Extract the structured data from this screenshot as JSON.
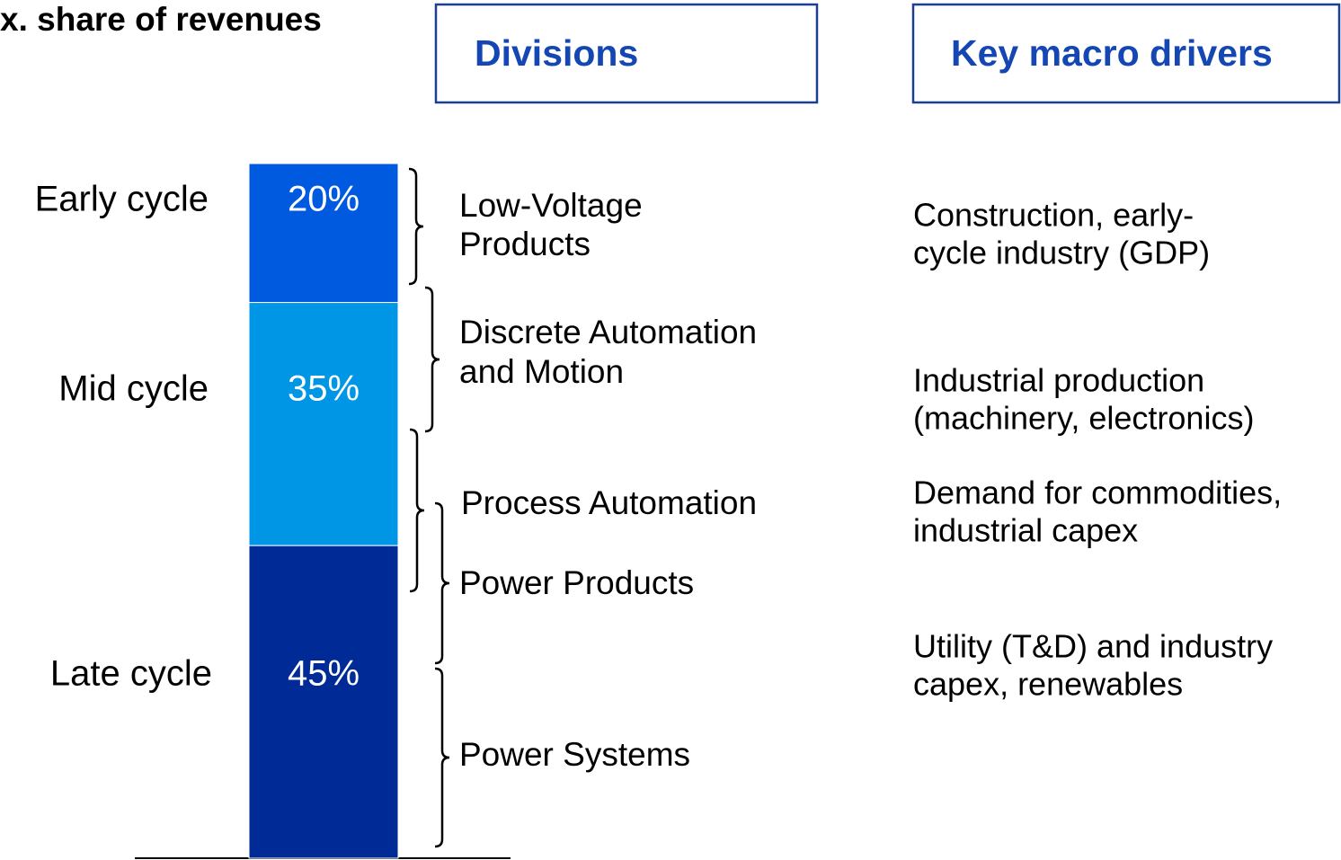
{
  "chart_data": {
    "type": "stacked_bar",
    "title": "x. share of revenues",
    "series": [
      {
        "name": "Early cycle",
        "color": "#005ae0",
        "values": [
          20
        ],
        "value_labels": [
          "20%"
        ]
      },
      {
        "name": "Mid cycle",
        "color": "#0096e6",
        "values": [
          35
        ],
        "value_labels": [
          "35%"
        ]
      },
      {
        "name": "Late cycle",
        "color": "#002a96",
        "values": [
          45
        ],
        "value_labels": [
          "45%"
        ]
      }
    ],
    "divisions": {
      "title": "Divisions",
      "items": [
        [
          "Low-Voltage",
          "Products"
        ],
        [
          "Discrete Automation",
          "and Motion"
        ],
        [
          "Process Automation"
        ],
        [
          "Power Products"
        ],
        [
          "Power Systems"
        ]
      ]
    },
    "drivers": {
      "title": "Key macro drivers",
      "items": [
        [
          "Construction, early-",
          "cycle industry (GDP)"
        ],
        [
          "Industrial production",
          "(machinery, electronics)"
        ],
        [
          "Demand for commodities,",
          "industrial capex"
        ],
        [
          "Utility (T&D) and industry",
          "capex, renewables"
        ]
      ]
    }
  }
}
